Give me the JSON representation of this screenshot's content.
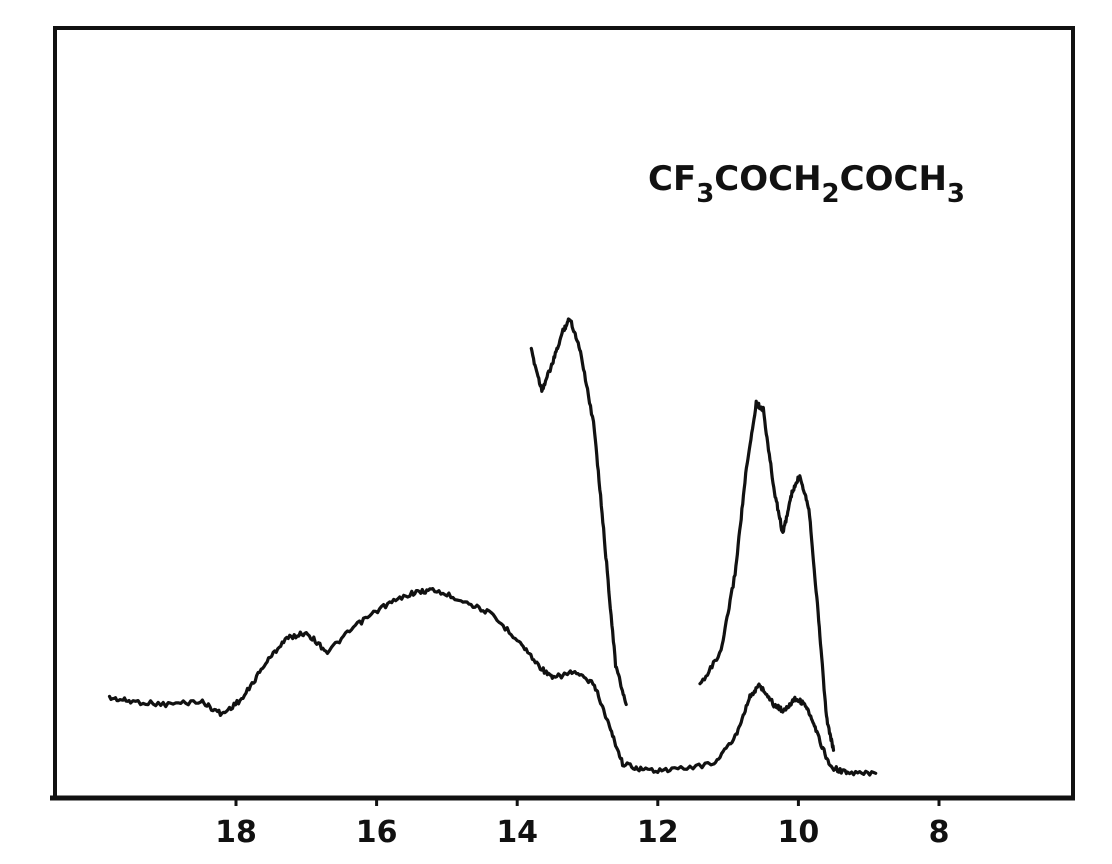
{
  "chart_data": {
    "type": "line",
    "title": "",
    "xlabel": "",
    "ylabel": "",
    "xlim": [
      20,
      6
    ],
    "ylim": [
      0,
      100
    ],
    "x_reversed": true,
    "grid": false,
    "x_ticks": [
      "18",
      "16",
      "14",
      "12",
      "10",
      "8"
    ],
    "annotation": {
      "parts": [
        {
          "text": "CF",
          "sub": false
        },
        {
          "text": "3",
          "sub": true
        },
        {
          "text": "COCH",
          "sub": false
        },
        {
          "text": "2",
          "sub": true
        },
        {
          "text": "COCH",
          "sub": false
        },
        {
          "text": "3",
          "sub": true
        }
      ]
    },
    "series": [
      {
        "values": [
          {
            "x": 19.8,
            "y": 11.0
          },
          {
            "x": 19.5,
            "y": 10.5
          },
          {
            "x": 19.0,
            "y": 10.0
          },
          {
            "x": 18.5,
            "y": 10.5
          },
          {
            "x": 18.2,
            "y": 8.5
          },
          {
            "x": 17.9,
            "y": 11.0
          },
          {
            "x": 17.6,
            "y": 16.0
          },
          {
            "x": 17.3,
            "y": 20.0
          },
          {
            "x": 17.0,
            "y": 21.0
          },
          {
            "x": 16.7,
            "y": 18.0
          },
          {
            "x": 16.3,
            "y": 22.0
          },
          {
            "x": 15.9,
            "y": 25.0
          },
          {
            "x": 15.5,
            "y": 27.0
          },
          {
            "x": 15.2,
            "y": 27.5
          },
          {
            "x": 14.8,
            "y": 26.0
          },
          {
            "x": 14.4,
            "y": 24.0
          },
          {
            "x": 14.0,
            "y": 20.0
          },
          {
            "x": 13.7,
            "y": 16.0
          },
          {
            "x": 13.5,
            "y": 14.0
          },
          {
            "x": 13.2,
            "y": 15.0
          },
          {
            "x": 12.9,
            "y": 13.0
          },
          {
            "x": 12.7,
            "y": 7.0
          },
          {
            "x": 12.5,
            "y": 1.0
          },
          {
            "x": 12.2,
            "y": 0.0
          },
          {
            "x": 11.8,
            "y": 0.0
          },
          {
            "x": 11.2,
            "y": 1.0
          },
          {
            "x": 10.9,
            "y": 5.0
          },
          {
            "x": 10.7,
            "y": 11.0
          },
          {
            "x": 10.55,
            "y": 13.0
          },
          {
            "x": 10.35,
            "y": 10.0
          },
          {
            "x": 10.2,
            "y": 9.0
          },
          {
            "x": 10.05,
            "y": 11.0
          },
          {
            "x": 9.9,
            "y": 10.0
          },
          {
            "x": 9.75,
            "y": 6.0
          },
          {
            "x": 9.55,
            "y": 0.5
          },
          {
            "x": 9.3,
            "y": -0.5
          },
          {
            "x": 8.9,
            "y": -0.5
          }
        ]
      },
      {
        "values": [
          {
            "x": 13.8,
            "y": 64.0
          },
          {
            "x": 13.65,
            "y": 58.0
          },
          {
            "x": 13.5,
            "y": 62.0
          },
          {
            "x": 13.35,
            "y": 67.0
          },
          {
            "x": 13.25,
            "y": 69.0
          },
          {
            "x": 13.1,
            "y": 64.0
          },
          {
            "x": 12.9,
            "y": 52.0
          },
          {
            "x": 12.75,
            "y": 34.0
          },
          {
            "x": 12.6,
            "y": 16.0
          },
          {
            "x": 12.45,
            "y": 10.0
          }
        ]
      },
      {
        "values": [
          {
            "x": 11.4,
            "y": 13.0
          },
          {
            "x": 11.1,
            "y": 18.0
          },
          {
            "x": 10.9,
            "y": 30.0
          },
          {
            "x": 10.75,
            "y": 45.0
          },
          {
            "x": 10.6,
            "y": 56.0
          },
          {
            "x": 10.5,
            "y": 55.0
          },
          {
            "x": 10.35,
            "y": 43.0
          },
          {
            "x": 10.22,
            "y": 36.0
          },
          {
            "x": 10.1,
            "y": 42.0
          },
          {
            "x": 9.98,
            "y": 45.0
          },
          {
            "x": 9.85,
            "y": 40.0
          },
          {
            "x": 9.72,
            "y": 24.0
          },
          {
            "x": 9.6,
            "y": 8.0
          },
          {
            "x": 9.5,
            "y": 3.0
          }
        ]
      }
    ]
  }
}
